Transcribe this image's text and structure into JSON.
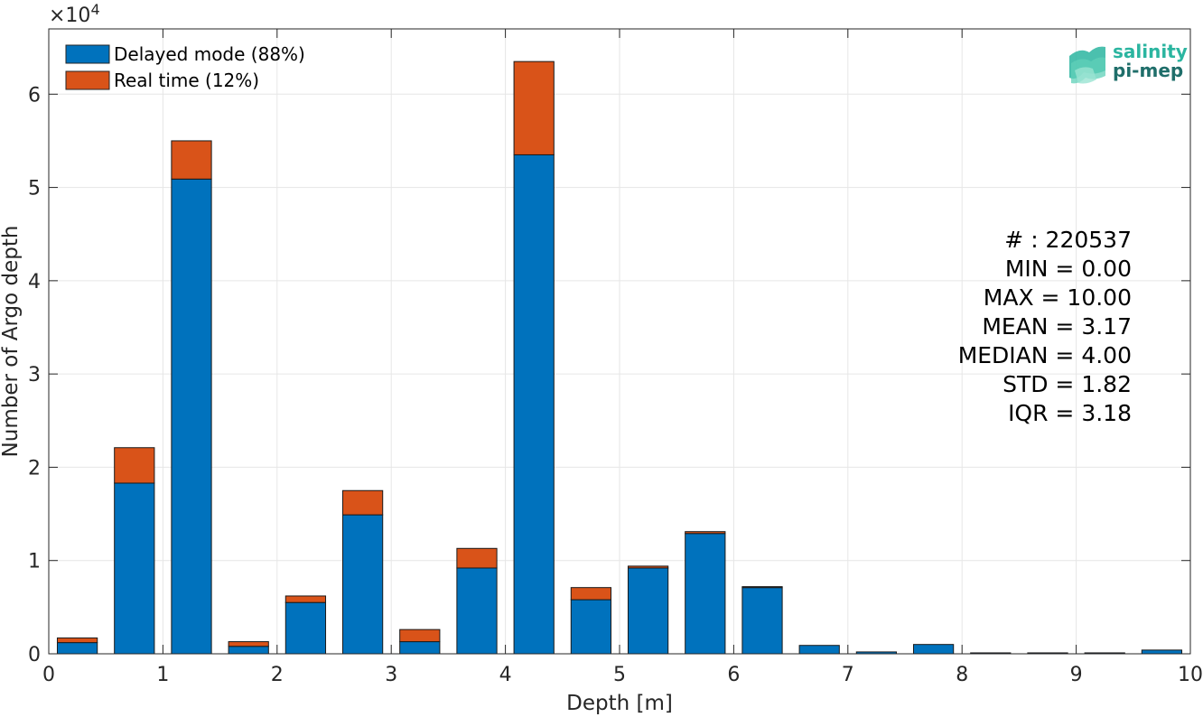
{
  "chart_data": {
    "type": "bar",
    "stacked": true,
    "xlabel": "Depth [m]",
    "ylabel": "Number of Argo depth",
    "y_multiplier_label": "×10",
    "y_multiplier_exponent": "4",
    "xlim": [
      0,
      10
    ],
    "ylim": [
      0,
      67000
    ],
    "xticks": [
      0,
      1,
      2,
      3,
      4,
      5,
      6,
      7,
      8,
      9,
      10
    ],
    "yticks": [
      0,
      10000,
      20000,
      30000,
      40000,
      50000,
      60000
    ],
    "ytick_labels": [
      "0",
      "1",
      "2",
      "3",
      "4",
      "5",
      "6"
    ],
    "grid": true,
    "legend_position": "top-left",
    "bar_width": 0.35,
    "x": [
      0.25,
      0.75,
      1.25,
      1.75,
      2.25,
      2.75,
      3.25,
      3.75,
      4.25,
      4.75,
      5.25,
      5.75,
      6.25,
      6.75,
      7.25,
      7.75,
      8.25,
      8.75,
      9.25,
      9.75
    ],
    "series": [
      {
        "name": "Delayed mode (88%)",
        "color": "#0072BD",
        "values": [
          1200,
          18300,
          50900,
          800,
          5500,
          14900,
          1300,
          9200,
          53500,
          5800,
          9200,
          12900,
          7100,
          900,
          200,
          1000,
          100,
          100,
          100,
          400
        ]
      },
      {
        "name": "Real time (12%)",
        "color": "#D95319",
        "values": [
          500,
          3800,
          4100,
          500,
          700,
          2600,
          1300,
          2100,
          10000,
          1300,
          200,
          200,
          100,
          0,
          0,
          0,
          0,
          0,
          0,
          0
        ]
      }
    ]
  },
  "stats": {
    "count": "# : 220537",
    "min": "MIN = 0.00",
    "max": "MAX =  10.00",
    "mean": "MEAN = 3.17",
    "median": "MEDIAN = 4.00",
    "std": "STD = 1.82",
    "iqr": "IQR = 3.18"
  },
  "logo": {
    "line1": "salinity",
    "line2": "pi-mep",
    "color1": "#2bb5a0",
    "color2": "#1f6e6a"
  }
}
